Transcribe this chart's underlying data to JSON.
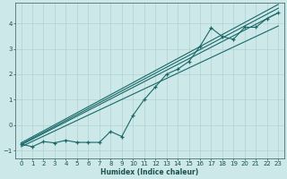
{
  "xlabel": "Humidex (Indice chaleur)",
  "xlim": [
    -0.5,
    23.5
  ],
  "ylim": [
    -1.3,
    4.8
  ],
  "background_color": "#cce8e8",
  "grid_color": "#aacece",
  "line_color": "#1a6868",
  "xticks": [
    0,
    1,
    2,
    3,
    4,
    5,
    6,
    7,
    8,
    9,
    10,
    11,
    12,
    13,
    14,
    15,
    16,
    17,
    18,
    19,
    20,
    21,
    22,
    23
  ],
  "yticks": [
    -1,
    0,
    1,
    2,
    3,
    4
  ],
  "marker_series": {
    "x": [
      0,
      1,
      2,
      3,
      4,
      5,
      6,
      7,
      8,
      9,
      10,
      11,
      12,
      13,
      14,
      15,
      16,
      17,
      18,
      19,
      20,
      21,
      22,
      23
    ],
    "y": [
      -0.75,
      -0.85,
      -0.65,
      -0.7,
      -0.6,
      -0.68,
      -0.68,
      -0.68,
      -0.25,
      -0.45,
      0.38,
      1.0,
      1.5,
      2.0,
      2.2,
      2.5,
      3.1,
      3.82,
      3.48,
      3.38,
      3.85,
      3.85,
      4.2,
      4.42
    ]
  },
  "straight_lines": [
    {
      "x0": 0,
      "y0": -0.78,
      "x1": 23,
      "y1": 4.42
    },
    {
      "x0": 0,
      "y0": -0.85,
      "x1": 23,
      "y1": 3.9
    },
    {
      "x0": 0,
      "y0": -0.75,
      "x1": 23,
      "y1": 4.6
    },
    {
      "x0": 0,
      "y0": -0.7,
      "x1": 23,
      "y1": 4.75
    }
  ]
}
